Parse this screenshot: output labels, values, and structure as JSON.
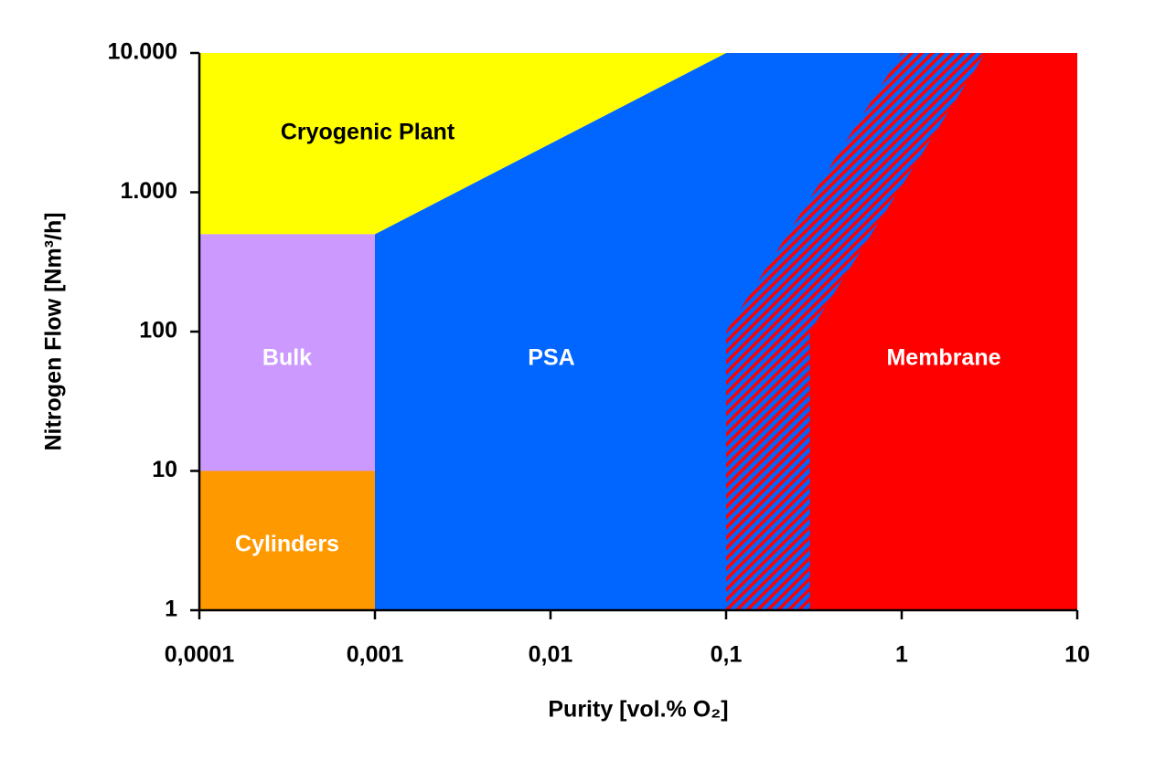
{
  "chart_data": {
    "type": "region",
    "xlabel": "Purity [vol.% O₂]",
    "ylabel": "Nitrogen Flow [Nm³/h]",
    "xscale": "log",
    "yscale": "log",
    "xlim": [
      0.0001,
      10
    ],
    "xticks": [
      {
        "value": 0.0001,
        "label": "0,0001"
      },
      {
        "value": 0.001,
        "label": "0,001"
      },
      {
        "value": 0.01,
        "label": "0,01"
      },
      {
        "value": 0.1,
        "label": "0,1"
      },
      1,
      10
    ],
    "ylim": [
      1,
      10000
    ],
    "yticks": [
      1,
      10,
      100,
      {
        "value": 1000,
        "label": "1.000"
      },
      {
        "value": 10000,
        "label": "10.000"
      }
    ],
    "series": [
      {
        "name": "PSA",
        "color": "#0066ff",
        "x": [
          0.001,
          0.001,
          0.1,
          10,
          10
        ],
        "y": [
          1,
          500,
          10000,
          10000,
          1
        ]
      },
      {
        "name": "Cryogenic Plant",
        "color": "#ffff00",
        "x": [
          0.0001,
          0.0001,
          0.1,
          0.001
        ],
        "y": [
          500,
          10000,
          10000,
          500
        ]
      },
      {
        "name": "Bulk",
        "color": "#cc99ff",
        "x": [
          0.0001,
          0.0001,
          0.001,
          0.001
        ],
        "y": [
          10,
          500,
          500,
          10
        ]
      },
      {
        "name": "Cylinders",
        "color": "#ff9900",
        "x": [
          0.0001,
          0.0001,
          0.001,
          0.001
        ],
        "y": [
          1,
          10,
          10,
          1
        ]
      },
      {
        "color": "#ff0000",
        "hatch": true,
        "x": [
          0.1,
          0.1,
          1,
          3,
          0.3,
          0.3
        ],
        "y": [
          1,
          100,
          10000,
          10000,
          100,
          1
        ]
      },
      {
        "name": "Membrane",
        "color": "#ff0000",
        "x": [
          0.3,
          0.3,
          3,
          10,
          10
        ],
        "y": [
          1,
          100,
          10000,
          10000,
          1
        ]
      }
    ]
  }
}
